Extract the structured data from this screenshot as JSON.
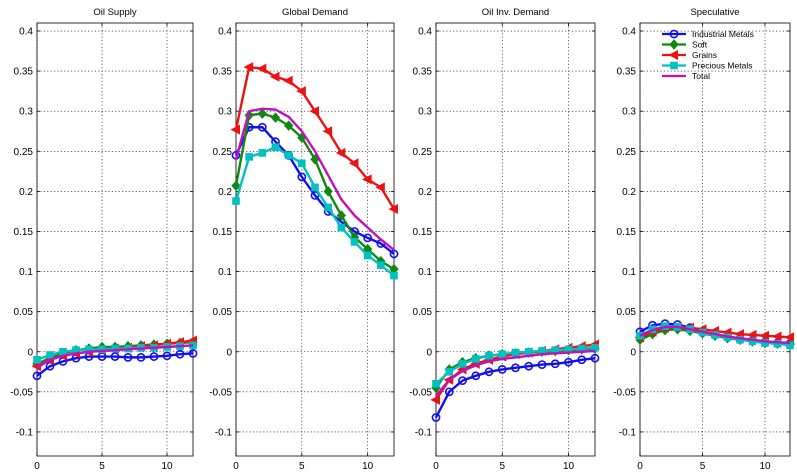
{
  "colors": {
    "industrial_metals": "#1010ee",
    "soft": "#118811",
    "grains": "#ee1111",
    "precious_metals": "#00c0c0",
    "total": "#c010c0"
  },
  "chart_data": [
    {
      "type": "line",
      "title": "Oil Supply",
      "xlim": [
        0,
        12
      ],
      "ylim": [
        -0.13,
        0.41
      ],
      "xticks": [
        0,
        5,
        10
      ],
      "yticks": [
        -0.1,
        -0.05,
        0,
        0.05,
        0.1,
        0.15,
        0.2,
        0.25,
        0.3,
        0.35,
        0.4
      ],
      "grid": true,
      "x": [
        0,
        1,
        2,
        3,
        4,
        5,
        6,
        7,
        8,
        9,
        10,
        11,
        12
      ],
      "series": [
        {
          "name": "Industrial Metals",
          "color_key": "industrial_metals",
          "marker": "circle",
          "values": [
            -0.03,
            -0.018,
            -0.012,
            -0.008,
            -0.006,
            -0.006,
            -0.006,
            -0.007,
            -0.007,
            -0.006,
            -0.005,
            -0.003,
            -0.002
          ]
        },
        {
          "name": "Soft",
          "color_key": "soft",
          "marker": "diamond",
          "values": [
            -0.015,
            -0.008,
            -0.002,
            0.002,
            0.004,
            0.006,
            0.006,
            0.007,
            0.008,
            0.009,
            0.01,
            0.011,
            0.012
          ]
        },
        {
          "name": "Grains",
          "color_key": "grains",
          "marker": "triangle-left",
          "values": [
            -0.018,
            -0.01,
            -0.005,
            -0.002,
            0.0,
            0.002,
            0.004,
            0.005,
            0.007,
            0.008,
            0.01,
            0.012,
            0.014
          ]
        },
        {
          "name": "Precious Metals",
          "color_key": "precious_metals",
          "marker": "square",
          "values": [
            -0.01,
            -0.004,
            0.0,
            0.002,
            0.003,
            0.003,
            0.004,
            0.004,
            0.005,
            0.005,
            0.006,
            0.007,
            0.008
          ]
        },
        {
          "name": "Total",
          "color_key": "total",
          "marker": "none",
          "values": [
            -0.02,
            -0.01,
            -0.005,
            -0.002,
            0.0,
            0.001,
            0.002,
            0.003,
            0.004,
            0.005,
            0.006,
            0.007,
            0.008
          ]
        }
      ]
    },
    {
      "type": "line",
      "title": "Global Demand",
      "xlim": [
        0,
        12
      ],
      "ylim": [
        -0.13,
        0.41
      ],
      "xticks": [
        0,
        5,
        10
      ],
      "yticks": [
        -0.1,
        -0.05,
        0,
        0.05,
        0.1,
        0.15,
        0.2,
        0.25,
        0.3,
        0.35,
        0.4
      ],
      "grid": true,
      "x": [
        0,
        1,
        2,
        3,
        4,
        5,
        6,
        7,
        8,
        9,
        10,
        11,
        12
      ],
      "series": [
        {
          "name": "Industrial Metals",
          "color_key": "industrial_metals",
          "marker": "circle",
          "values": [
            0.245,
            0.28,
            0.28,
            0.262,
            0.245,
            0.218,
            0.195,
            0.175,
            0.162,
            0.15,
            0.142,
            0.135,
            0.122
          ]
        },
        {
          "name": "Soft",
          "color_key": "soft",
          "marker": "diamond",
          "values": [
            0.207,
            0.295,
            0.297,
            0.292,
            0.282,
            0.267,
            0.24,
            0.2,
            0.17,
            0.143,
            0.128,
            0.113,
            0.103
          ]
        },
        {
          "name": "Grains",
          "color_key": "grains",
          "marker": "triangle-left",
          "values": [
            0.277,
            0.355,
            0.353,
            0.343,
            0.338,
            0.325,
            0.3,
            0.275,
            0.248,
            0.235,
            0.215,
            0.205,
            0.178
          ]
        },
        {
          "name": "Precious Metals",
          "color_key": "precious_metals",
          "marker": "square",
          "values": [
            0.188,
            0.243,
            0.248,
            0.255,
            0.245,
            0.235,
            0.205,
            0.18,
            0.155,
            0.137,
            0.12,
            0.108,
            0.095
          ]
        },
        {
          "name": "Total",
          "color_key": "total",
          "marker": "none",
          "values": [
            0.24,
            0.3,
            0.303,
            0.302,
            0.293,
            0.275,
            0.25,
            0.22,
            0.19,
            0.17,
            0.155,
            0.14,
            0.127
          ]
        }
      ]
    },
    {
      "type": "line",
      "title": "Oil Inv. Demand",
      "xlim": [
        0,
        12
      ],
      "ylim": [
        -0.13,
        0.41
      ],
      "xticks": [
        0,
        5,
        10
      ],
      "yticks": [
        -0.1,
        -0.05,
        0,
        0.05,
        0.1,
        0.15,
        0.2,
        0.25,
        0.3,
        0.35,
        0.4
      ],
      "grid": true,
      "x": [
        0,
        1,
        2,
        3,
        4,
        5,
        6,
        7,
        8,
        9,
        10,
        11,
        12
      ],
      "series": [
        {
          "name": "Industrial Metals",
          "color_key": "industrial_metals",
          "marker": "circle",
          "values": [
            -0.082,
            -0.05,
            -0.036,
            -0.03,
            -0.025,
            -0.022,
            -0.02,
            -0.018,
            -0.016,
            -0.015,
            -0.013,
            -0.01,
            -0.008
          ]
        },
        {
          "name": "Soft",
          "color_key": "soft",
          "marker": "diamond",
          "values": [
            -0.045,
            -0.022,
            -0.013,
            -0.008,
            -0.005,
            -0.003,
            -0.002,
            -0.001,
            0.0,
            0.001,
            0.002,
            0.003,
            0.004
          ]
        },
        {
          "name": "Grains",
          "color_key": "grains",
          "marker": "triangle-left",
          "values": [
            -0.06,
            -0.035,
            -0.022,
            -0.015,
            -0.01,
            -0.006,
            -0.003,
            -0.001,
            0.001,
            0.003,
            0.005,
            0.007,
            0.009
          ]
        },
        {
          "name": "Precious Metals",
          "color_key": "precious_metals",
          "marker": "square",
          "values": [
            -0.04,
            -0.025,
            -0.015,
            -0.009,
            -0.005,
            -0.003,
            -0.001,
            0.0,
            0.001,
            0.002,
            0.003,
            0.004,
            0.005
          ]
        },
        {
          "name": "Total",
          "color_key": "total",
          "marker": "none",
          "values": [
            -0.055,
            -0.035,
            -0.024,
            -0.017,
            -0.012,
            -0.009,
            -0.007,
            -0.005,
            -0.003,
            -0.002,
            -0.001,
            0.0,
            0.001
          ]
        }
      ]
    },
    {
      "type": "line",
      "title": "Speculative",
      "xlim": [
        0,
        12
      ],
      "ylim": [
        -0.13,
        0.41
      ],
      "xticks": [
        0,
        5,
        10
      ],
      "yticks": [
        -0.1,
        -0.05,
        0,
        0.05,
        0.1,
        0.15,
        0.2,
        0.25,
        0.3,
        0.35,
        0.4
      ],
      "grid": true,
      "legend": "top-right",
      "x": [
        0,
        1,
        2,
        3,
        4,
        5,
        6,
        7,
        8,
        9,
        10,
        11,
        12
      ],
      "series": [
        {
          "name": "Industrial Metals",
          "color_key": "industrial_metals",
          "marker": "circle",
          "values": [
            0.025,
            0.033,
            0.035,
            0.034,
            0.03,
            0.025,
            0.022,
            0.019,
            0.016,
            0.014,
            0.012,
            0.011,
            0.01
          ]
        },
        {
          "name": "Soft",
          "color_key": "soft",
          "marker": "diamond",
          "values": [
            0.015,
            0.022,
            0.027,
            0.028,
            0.026,
            0.023,
            0.02,
            0.017,
            0.015,
            0.013,
            0.011,
            0.01,
            0.009
          ]
        },
        {
          "name": "Grains",
          "color_key": "grains",
          "marker": "triangle-left",
          "values": [
            0.018,
            0.025,
            0.03,
            0.031,
            0.03,
            0.028,
            0.026,
            0.024,
            0.022,
            0.021,
            0.02,
            0.019,
            0.018
          ]
        },
        {
          "name": "Precious Metals",
          "color_key": "precious_metals",
          "marker": "square",
          "values": [
            0.02,
            0.028,
            0.032,
            0.031,
            0.028,
            0.024,
            0.021,
            0.018,
            0.015,
            0.013,
            0.011,
            0.01,
            0.008
          ]
        },
        {
          "name": "Total",
          "color_key": "total",
          "marker": "none",
          "values": [
            0.02,
            0.027,
            0.031,
            0.031,
            0.028,
            0.025,
            0.022,
            0.019,
            0.017,
            0.015,
            0.013,
            0.012,
            0.011
          ]
        }
      ]
    }
  ]
}
